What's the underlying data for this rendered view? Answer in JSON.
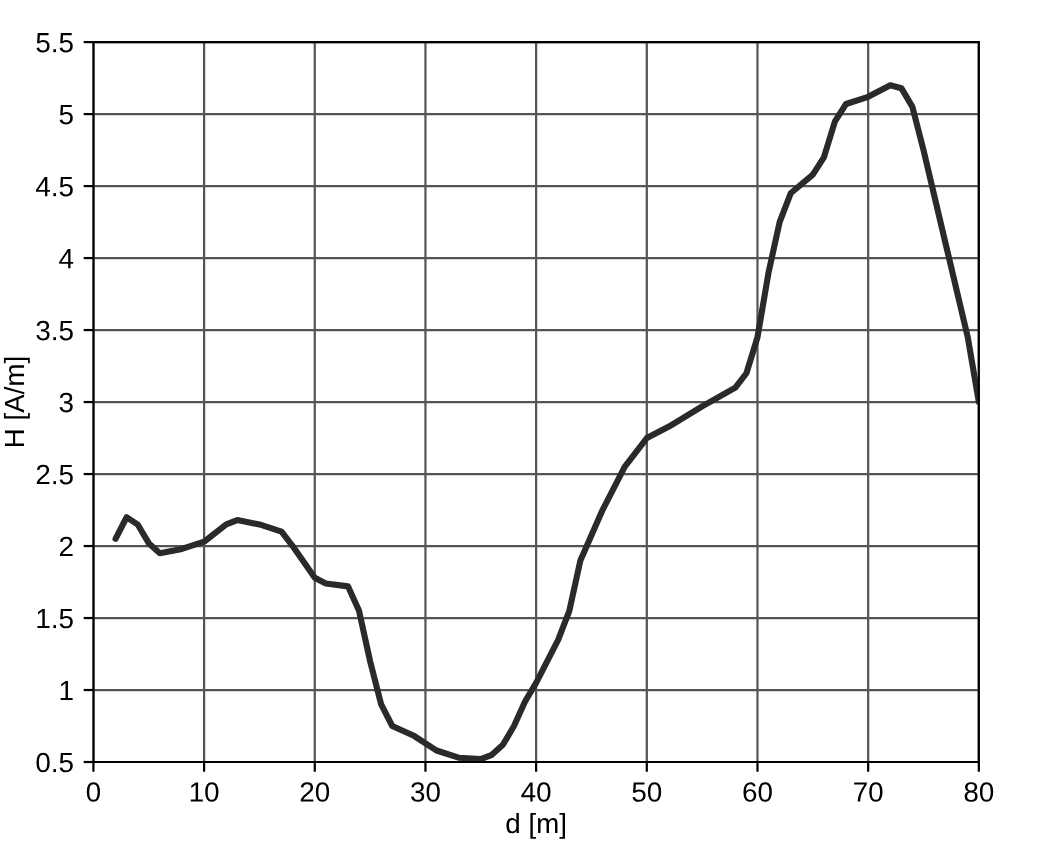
{
  "chart_data": {
    "type": "line",
    "xlabel": "d [m]",
    "ylabel": "H [A/m]",
    "xlim": [
      0,
      80
    ],
    "ylim": [
      0.5,
      5.5
    ],
    "xticks": [
      0,
      10,
      20,
      30,
      40,
      50,
      60,
      70,
      80
    ],
    "yticks": [
      0.5,
      1,
      1.5,
      2,
      2.5,
      3,
      3.5,
      4,
      4.5,
      5,
      5.5
    ],
    "grid": true,
    "x": [
      2,
      3,
      4,
      5,
      6,
      8,
      10,
      12,
      13,
      15,
      17,
      18,
      20,
      21,
      23,
      24,
      25,
      26,
      27,
      29,
      31,
      33,
      35,
      36,
      37,
      38,
      39,
      40,
      42,
      43,
      44,
      46,
      48,
      50,
      52,
      55,
      58,
      59,
      60,
      61,
      62,
      63,
      65,
      66,
      67,
      68,
      70,
      72,
      73,
      74,
      75,
      77,
      79,
      80
    ],
    "series": [
      {
        "color": "#2a2a2a",
        "values": [
          2.05,
          2.2,
          2.15,
          2.02,
          1.95,
          1.98,
          2.03,
          2.15,
          2.18,
          2.15,
          2.1,
          2.0,
          1.78,
          1.74,
          1.72,
          1.55,
          1.2,
          0.9,
          0.75,
          0.68,
          0.58,
          0.53,
          0.52,
          0.55,
          0.62,
          0.75,
          0.92,
          1.05,
          1.35,
          1.55,
          1.9,
          2.25,
          2.55,
          2.75,
          2.83,
          2.97,
          3.1,
          3.2,
          3.45,
          3.9,
          4.25,
          4.45,
          4.58,
          4.7,
          4.95,
          5.07,
          5.12,
          5.2,
          5.18,
          5.05,
          4.75,
          4.1,
          3.45,
          3.0
        ]
      }
    ]
  }
}
